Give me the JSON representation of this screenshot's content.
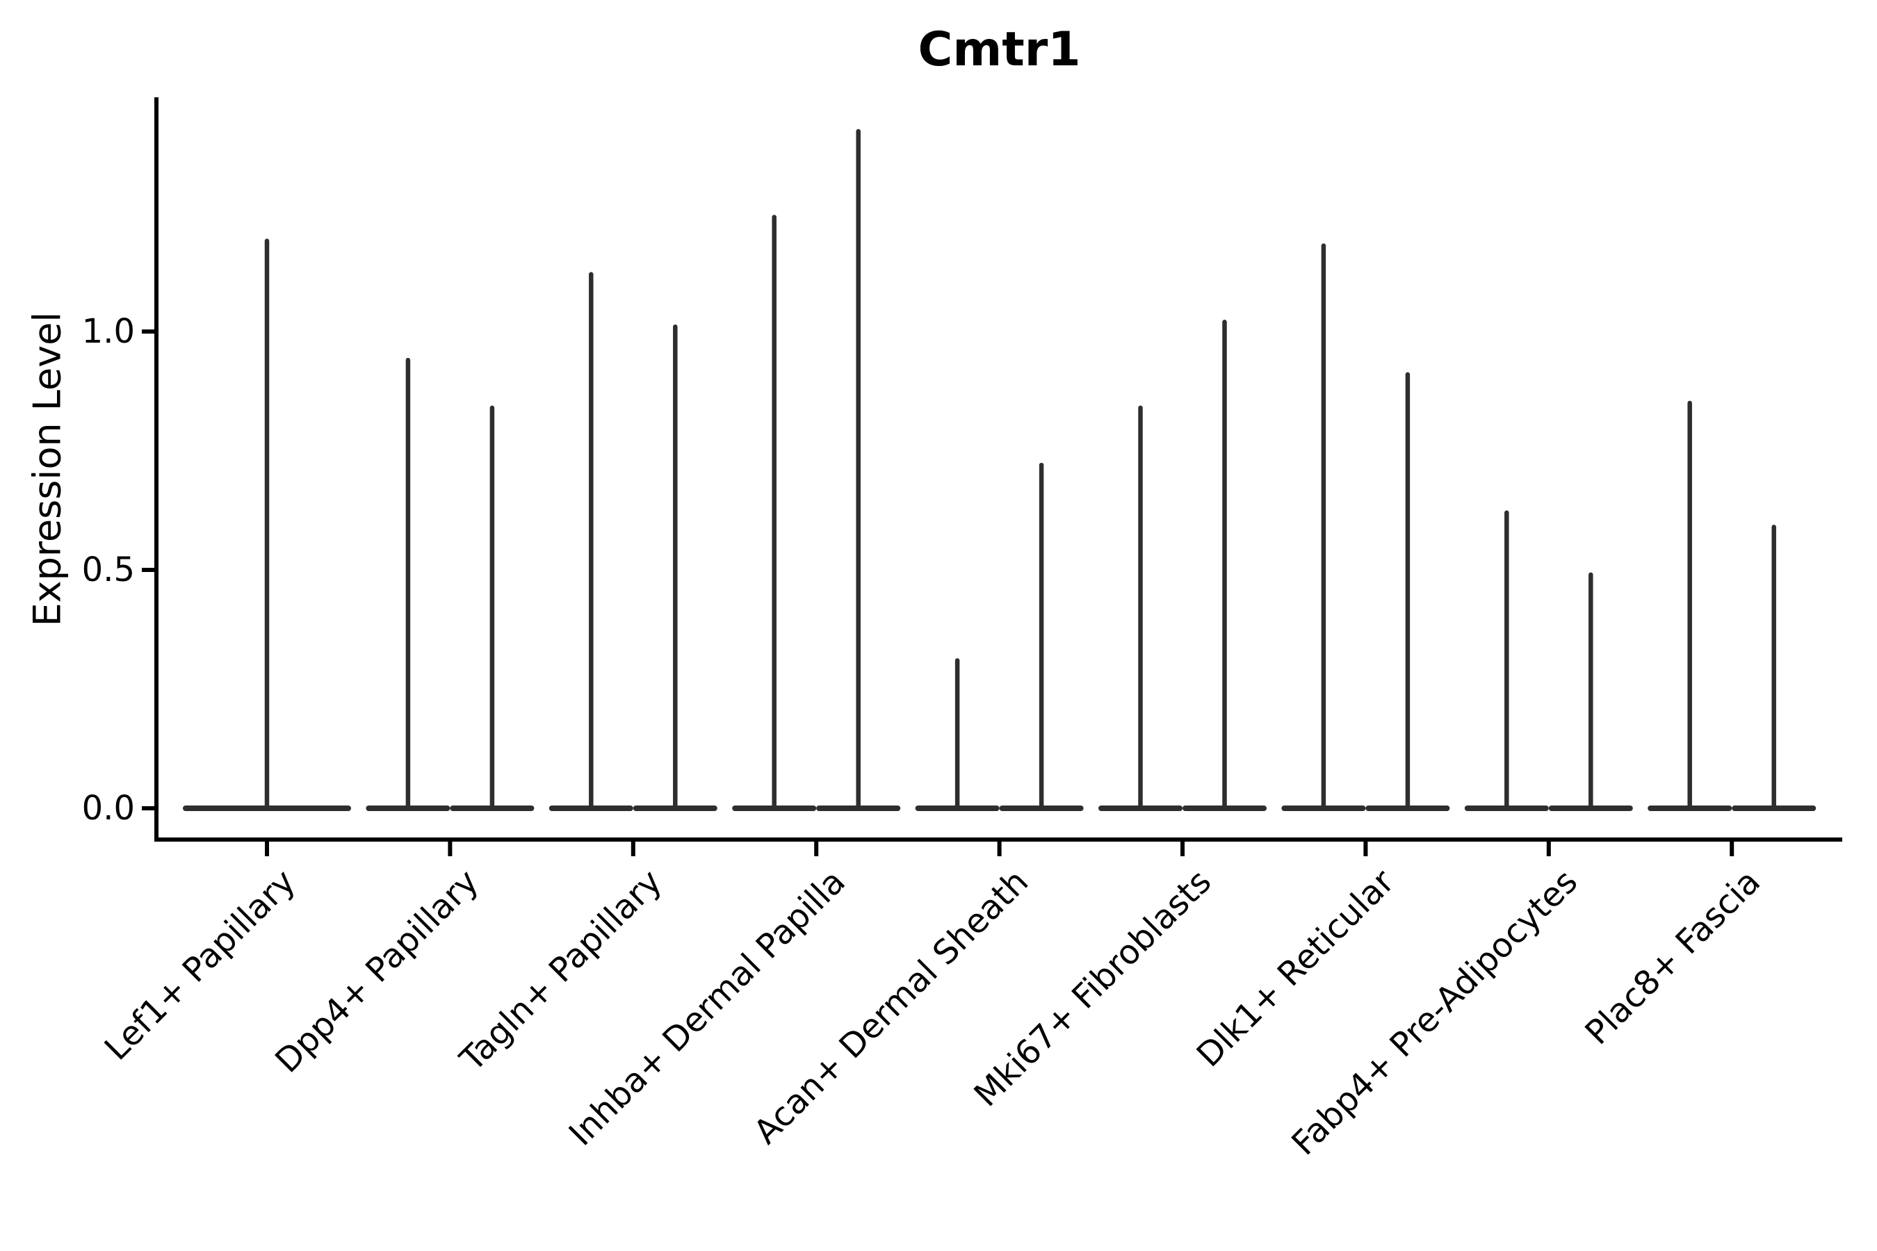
{
  "figure": {
    "title": "Cmtr1",
    "background_color": "#ffffff"
  },
  "chart_data": {
    "type": "violin",
    "title": "Cmtr1",
    "xlabel": "",
    "ylabel": "Expression Level",
    "ytick_labels": [
      "0.0",
      "0.5",
      "1.0"
    ],
    "ytick_values": [
      0.0,
      0.5,
      1.0
    ],
    "ylim": [
      -0.07,
      1.49
    ],
    "grid": false,
    "legend_position": "none",
    "categories": [
      "Lef1+ Papillary",
      "Dpp4+ Papillary",
      "Tagln+ Papillary",
      "Inhba+ Dermal Papilla",
      "Acan+ Dermal Sheath",
      "Mki67+ Fibroblasts",
      "Dlk1+ Reticular",
      "Fabp4+ Pre-Adipocytes",
      "Plac8+ Fascia"
    ],
    "violin_max_per_category": [
      [
        1.19
      ],
      [
        0.94,
        0.84
      ],
      [
        1.12,
        1.01
      ],
      [
        1.24,
        1.42
      ],
      [
        0.31,
        0.72
      ],
      [
        0.84,
        1.02
      ],
      [
        1.18,
        0.91
      ],
      [
        0.62,
        0.49
      ],
      [
        0.85,
        0.59
      ]
    ],
    "violin_min": 0.0,
    "colors": {
      "violin_stroke": "#2e2e2e",
      "axis": "#000000",
      "text": "#000000",
      "background": "#ffffff"
    }
  }
}
